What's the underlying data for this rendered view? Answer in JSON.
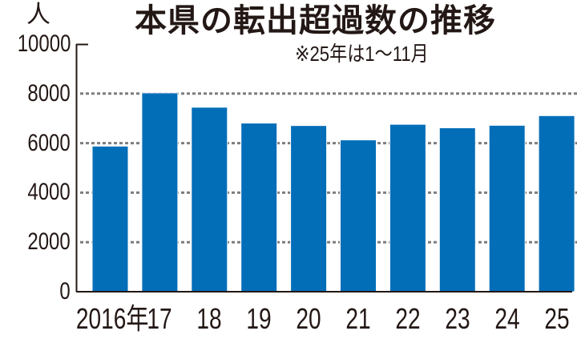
{
  "chart_data": {
    "type": "bar",
    "title": "本県の転出超過数の推移",
    "subtitle": "※25年は1～11月",
    "ylabel": "人",
    "xlabel": "",
    "categories": [
      "2016年",
      "17",
      "18",
      "19",
      "20",
      "21",
      "22",
      "23",
      "24",
      "25"
    ],
    "values": [
      5880,
      8030,
      7450,
      6810,
      6710,
      6130,
      6760,
      6620,
      6720,
      7110
    ],
    "ylim": [
      0,
      10000
    ],
    "yticks": [
      "0",
      "2000",
      "4000",
      "6000",
      "8000",
      "10000"
    ],
    "grid": "dotted horizontal at 2000, 4000, 6000, 8000",
    "legend": "none",
    "bar_color": "#036eb8"
  },
  "header": {
    "title": "本県の転出超過数の推移",
    "note": "※25年は1～11月",
    "unit": "人"
  },
  "yaxis": {
    "ticks": [
      "10000",
      "8000",
      "6000",
      "4000",
      "2000",
      "0"
    ]
  },
  "xaxis": {
    "labels": [
      "2016年",
      "17",
      "18",
      "19",
      "20",
      "21",
      "22",
      "23",
      "24",
      "25"
    ]
  },
  "colors": {
    "bar": "#036eb8",
    "grid": "#7d7d7d",
    "axis": "#231815",
    "text": "#231815"
  }
}
